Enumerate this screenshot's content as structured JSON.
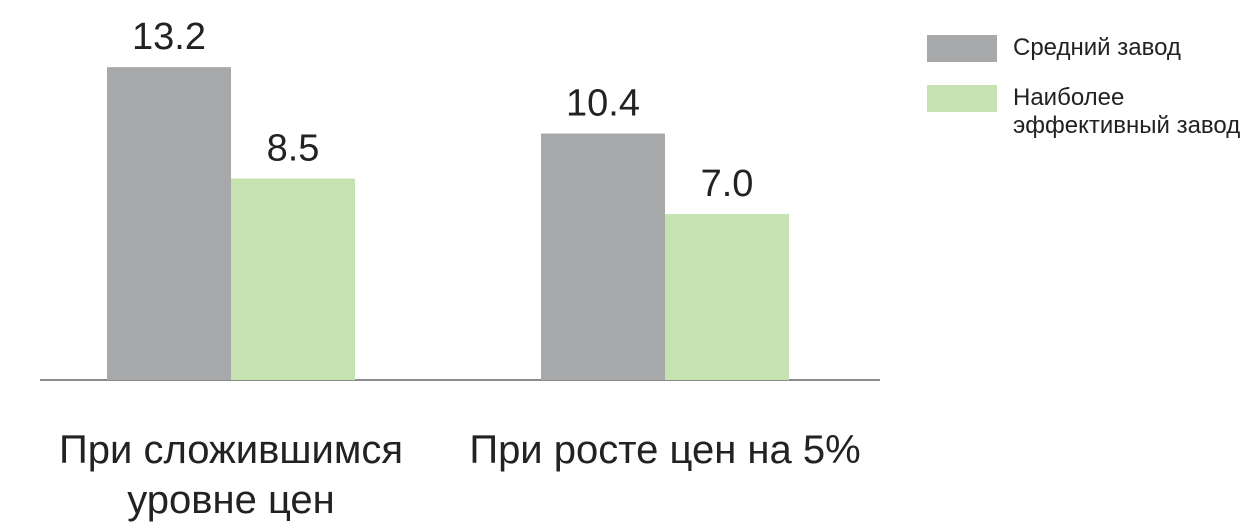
{
  "chart_data": {
    "type": "bar",
    "categories": [
      "При сложившимся уровне цен",
      "При росте цен на 5%"
    ],
    "series": [
      {
        "name": "Средний завод",
        "color": "#a7a8aa",
        "values": [
          13.2,
          10.4
        ]
      },
      {
        "name": "Наиболее эффективный завод",
        "color": "#c5e3b0",
        "values": [
          8.5,
          7
        ],
        "value_labels": [
          "8.5",
          "7.0"
        ]
      }
    ],
    "legend": "top-right"
  }
}
